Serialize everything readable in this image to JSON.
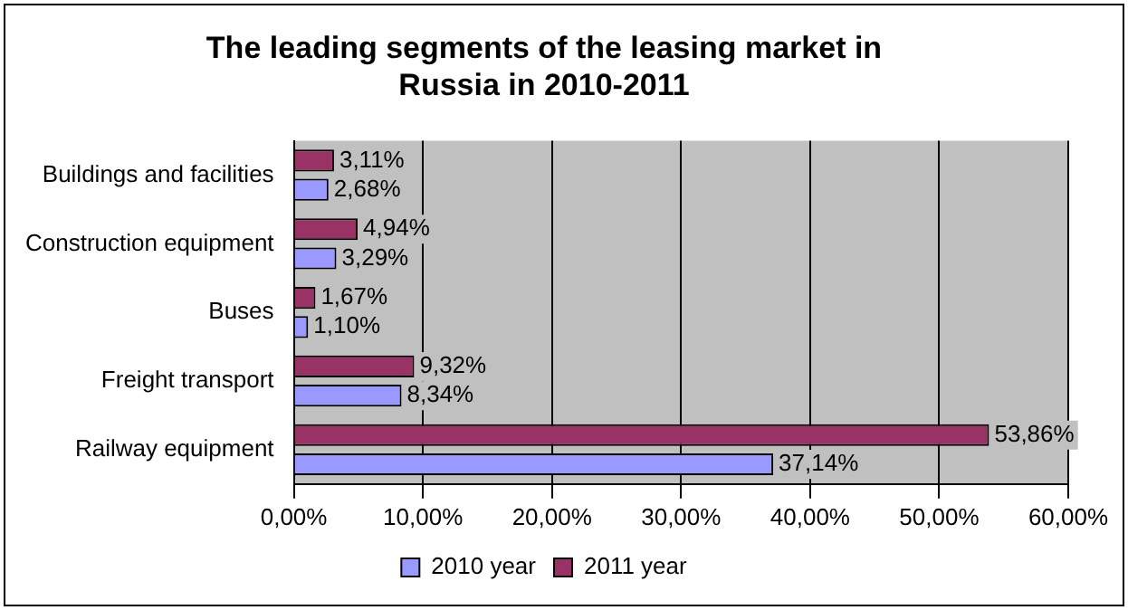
{
  "chart_data": {
    "type": "bar",
    "orientation": "horizontal",
    "title": [
      "The leading segments of the leasing market in",
      "Russia in 2010-2011"
    ],
    "categories": [
      "Buildings and facilities",
      "Construction equipment",
      "Buses",
      "Freight transport",
      "Railway equipment"
    ],
    "series": [
      {
        "name": "2010 year",
        "color": "#9999ff",
        "values": [
          2.68,
          3.29,
          1.1,
          8.34,
          37.14
        ],
        "value_labels": [
          "2,68%",
          "3,29%",
          "1,10%",
          "8,34%",
          "37,14%"
        ]
      },
      {
        "name": "2011 year",
        "color": "#993366",
        "values": [
          3.11,
          4.94,
          1.67,
          9.32,
          53.86
        ],
        "value_labels": [
          "3,11%",
          "4,94%",
          "1,67%",
          "9,32%",
          "53,86%"
        ]
      }
    ],
    "xlim": [
      0,
      60
    ],
    "xticks": [
      {
        "value": 0,
        "label": "0,00%"
      },
      {
        "value": 10,
        "label": "10,00%"
      },
      {
        "value": 20,
        "label": "20,00%"
      },
      {
        "value": 30,
        "label": "30,00%"
      },
      {
        "value": 40,
        "label": "40,00%"
      },
      {
        "value": 50,
        "label": "50,00%"
      },
      {
        "value": 60,
        "label": "60,00%"
      }
    ],
    "grid": "x",
    "legend": "bottom"
  }
}
